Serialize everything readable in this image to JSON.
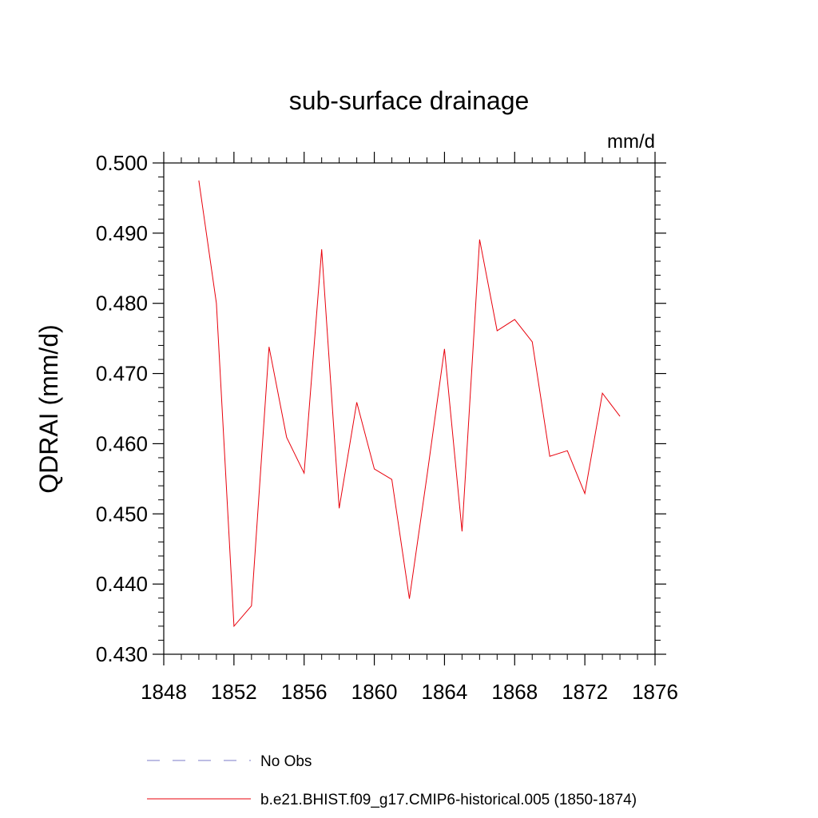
{
  "chart_data": {
    "type": "line",
    "title": "sub-surface drainage",
    "units": "mm/d",
    "ylabel": "QDRAI  (mm/d)",
    "xlabel": "",
    "xlim": [
      1848,
      1876
    ],
    "ylim": [
      0.43,
      0.5
    ],
    "x_ticks": [
      1848,
      1852,
      1856,
      1860,
      1864,
      1868,
      1872,
      1876
    ],
    "x_minor_step": 1,
    "y_ticks": [
      0.43,
      0.44,
      0.45,
      0.46,
      0.47,
      0.48,
      0.49,
      0.5
    ],
    "y_tick_labels": [
      "0.430",
      "0.440",
      "0.450",
      "0.460",
      "0.470",
      "0.480",
      "0.490",
      "0.500"
    ],
    "y_minor_step": 0.002,
    "grid": false,
    "legend_position": "bottom",
    "series": [
      {
        "name": "No Obs",
        "style": "dashed",
        "color": "#7b7bc8",
        "x": [],
        "y": []
      },
      {
        "name": "b.e21.BHIST.f09_g17.CMIP6-historical.005 (1850-1874)",
        "style": "solid",
        "color": "#e8000b",
        "x": [
          1850,
          1851,
          1852,
          1853,
          1854,
          1855,
          1856,
          1857,
          1858,
          1859,
          1860,
          1861,
          1862,
          1863,
          1864,
          1865,
          1866,
          1867,
          1868,
          1869,
          1870,
          1871,
          1872,
          1873,
          1874
        ],
        "y": [
          0.4975,
          0.48,
          0.434,
          0.4369,
          0.4738,
          0.4609,
          0.4558,
          0.4877,
          0.4508,
          0.4659,
          0.4564,
          0.4549,
          0.4379,
          0.4554,
          0.4735,
          0.4475,
          0.4891,
          0.4761,
          0.4777,
          0.4745,
          0.4582,
          0.459,
          0.4529,
          0.4672,
          0.4639
        ]
      }
    ]
  }
}
